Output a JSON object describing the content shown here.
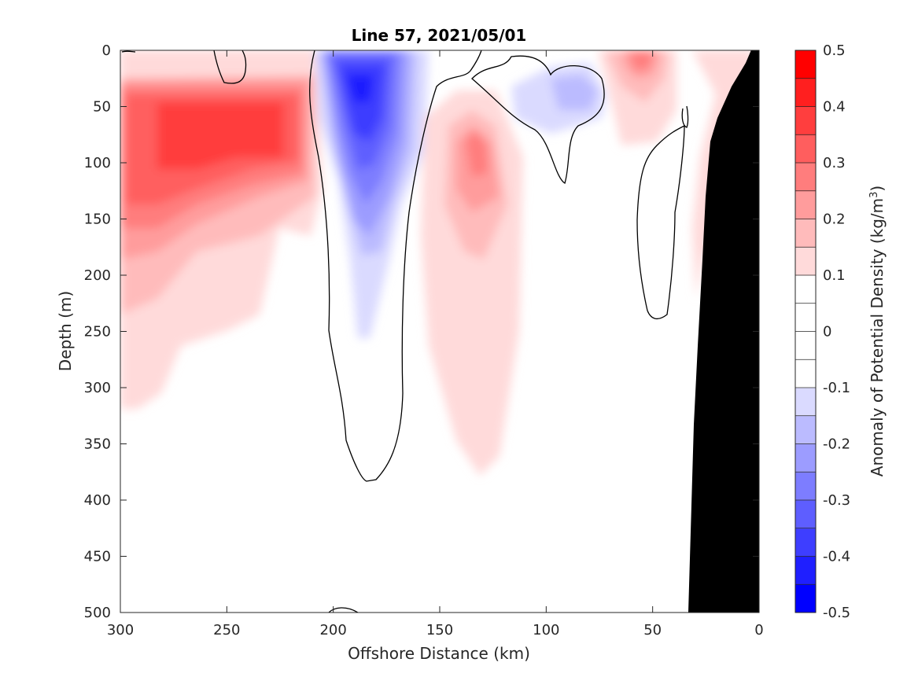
{
  "chart_data": {
    "type": "heatmap",
    "subtype": "filled-contour section",
    "title": "Line 57, 2021/05/01",
    "xlabel": "Offshore Distance (km)",
    "ylabel": "Depth (m)",
    "xlim": [
      300,
      0
    ],
    "x_reversed": true,
    "ylim": [
      0,
      500
    ],
    "y_reversed": true,
    "x_ticks": [
      "300",
      "250",
      "200",
      "150",
      "100",
      "50",
      "0"
    ],
    "y_ticks": [
      "0",
      "50",
      "100",
      "150",
      "200",
      "250",
      "300",
      "350",
      "400",
      "450",
      "500"
    ],
    "colorbar": {
      "label": "Anomaly of Potential Density (kg/m",
      "label_sup": "3",
      "label_end": ")",
      "range": [
        -0.5,
        0.5
      ],
      "ticks": [
        "0.5",
        "0.4",
        "0.3",
        "0.2",
        "0.1",
        "0",
        "-0.1",
        "-0.2",
        "-0.3",
        "-0.4",
        "-0.5"
      ],
      "step": 0.05,
      "colors": [
        "#0000ff",
        "#1f1fff",
        "#3e3eff",
        "#5e5eff",
        "#7d7dff",
        "#9c9cff",
        "#bbbbff",
        "#dadaff",
        "#ffffff",
        "#ffffff",
        "#ffffff",
        "#ffffff",
        "#ffdada",
        "#ffbbbb",
        "#ff9c9c",
        "#ff7d7d",
        "#ff5e5e",
        "#ff3e3e",
        "#ff1f1f",
        "#ff0000"
      ]
    },
    "features": [
      {
        "name": "positive anomaly core offshore",
        "x_km": 268,
        "depth_m": 65,
        "max_value": 0.35
      },
      {
        "name": "negative anomaly core",
        "x_km": 187,
        "depth_m": 30,
        "min_value": -0.45
      },
      {
        "name": "positive anomaly subsurface",
        "x_km": 133,
        "depth_m": 95,
        "max_value": 0.2
      },
      {
        "name": "weak negative anomaly",
        "x_km": 87,
        "depth_m": 38,
        "min_value": -0.2
      },
      {
        "name": "positive anomaly near surface",
        "x_km": 55,
        "depth_m": 15,
        "max_value": 0.25
      }
    ],
    "bathymetry": "black filled seafloor near 0-33 km",
    "grid": false
  }
}
